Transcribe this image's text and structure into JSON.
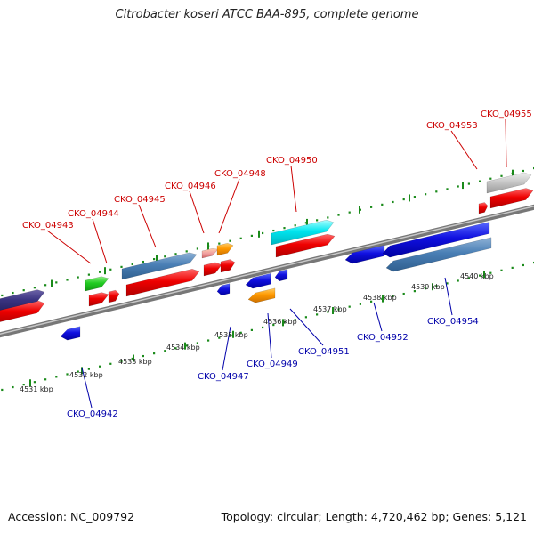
{
  "title": "Citrobacter koseri ATCC BAA-895, complete genome",
  "footer": {
    "accession": "Accession: NC_009792",
    "summary": "Topology: circular; Length: 4,720,462 bp; Genes: 5,121"
  },
  "colors": {
    "forward_label": "#cc0000",
    "reverse_label": "#0000aa",
    "forward_tick": "#008800",
    "reverse_tick": "#008800"
  },
  "scale": {
    "unit": "kbp",
    "ticks": [
      {
        "value": 4531,
        "label": "4531 kbp"
      },
      {
        "value": 4532,
        "label": "4532 kbp"
      },
      {
        "value": 4533,
        "label": "4533 kbp"
      },
      {
        "value": 4534,
        "label": "4534 kbp"
      },
      {
        "value": 4535,
        "label": "4535 kbp"
      },
      {
        "value": 4536,
        "label": "4536 kbp"
      },
      {
        "value": 4537,
        "label": "4537 kbp"
      },
      {
        "value": 4538,
        "label": "4538 kbp"
      },
      {
        "value": 4539,
        "label": "4539 kbp"
      },
      {
        "value": 4540,
        "label": "4540 kbp"
      }
    ]
  },
  "forward_genes": [
    {
      "id": "CKO_04943",
      "label": "CKO_04943"
    },
    {
      "id": "CKO_04944",
      "label": "CKO_04944"
    },
    {
      "id": "CKO_04945",
      "label": "CKO_04945"
    },
    {
      "id": "CKO_04946",
      "label": "CKO_04946"
    },
    {
      "id": "CKO_04948",
      "label": "CKO_04948"
    },
    {
      "id": "CKO_04950",
      "label": "CKO_04950"
    },
    {
      "id": "CKO_04953",
      "label": "CKO_04953"
    },
    {
      "id": "CKO_04955",
      "label": "CKO_04955"
    }
  ],
  "reverse_genes": [
    {
      "id": "CKO_04942",
      "label": "CKO_04942"
    },
    {
      "id": "CKO_04947",
      "label": "CKO_04947"
    },
    {
      "id": "CKO_04949",
      "label": "CKO_04949"
    },
    {
      "id": "CKO_04951",
      "label": "CKO_04951"
    },
    {
      "id": "CKO_04952",
      "label": "CKO_04952"
    },
    {
      "id": "CKO_04954",
      "label": "CKO_04954"
    }
  ]
}
